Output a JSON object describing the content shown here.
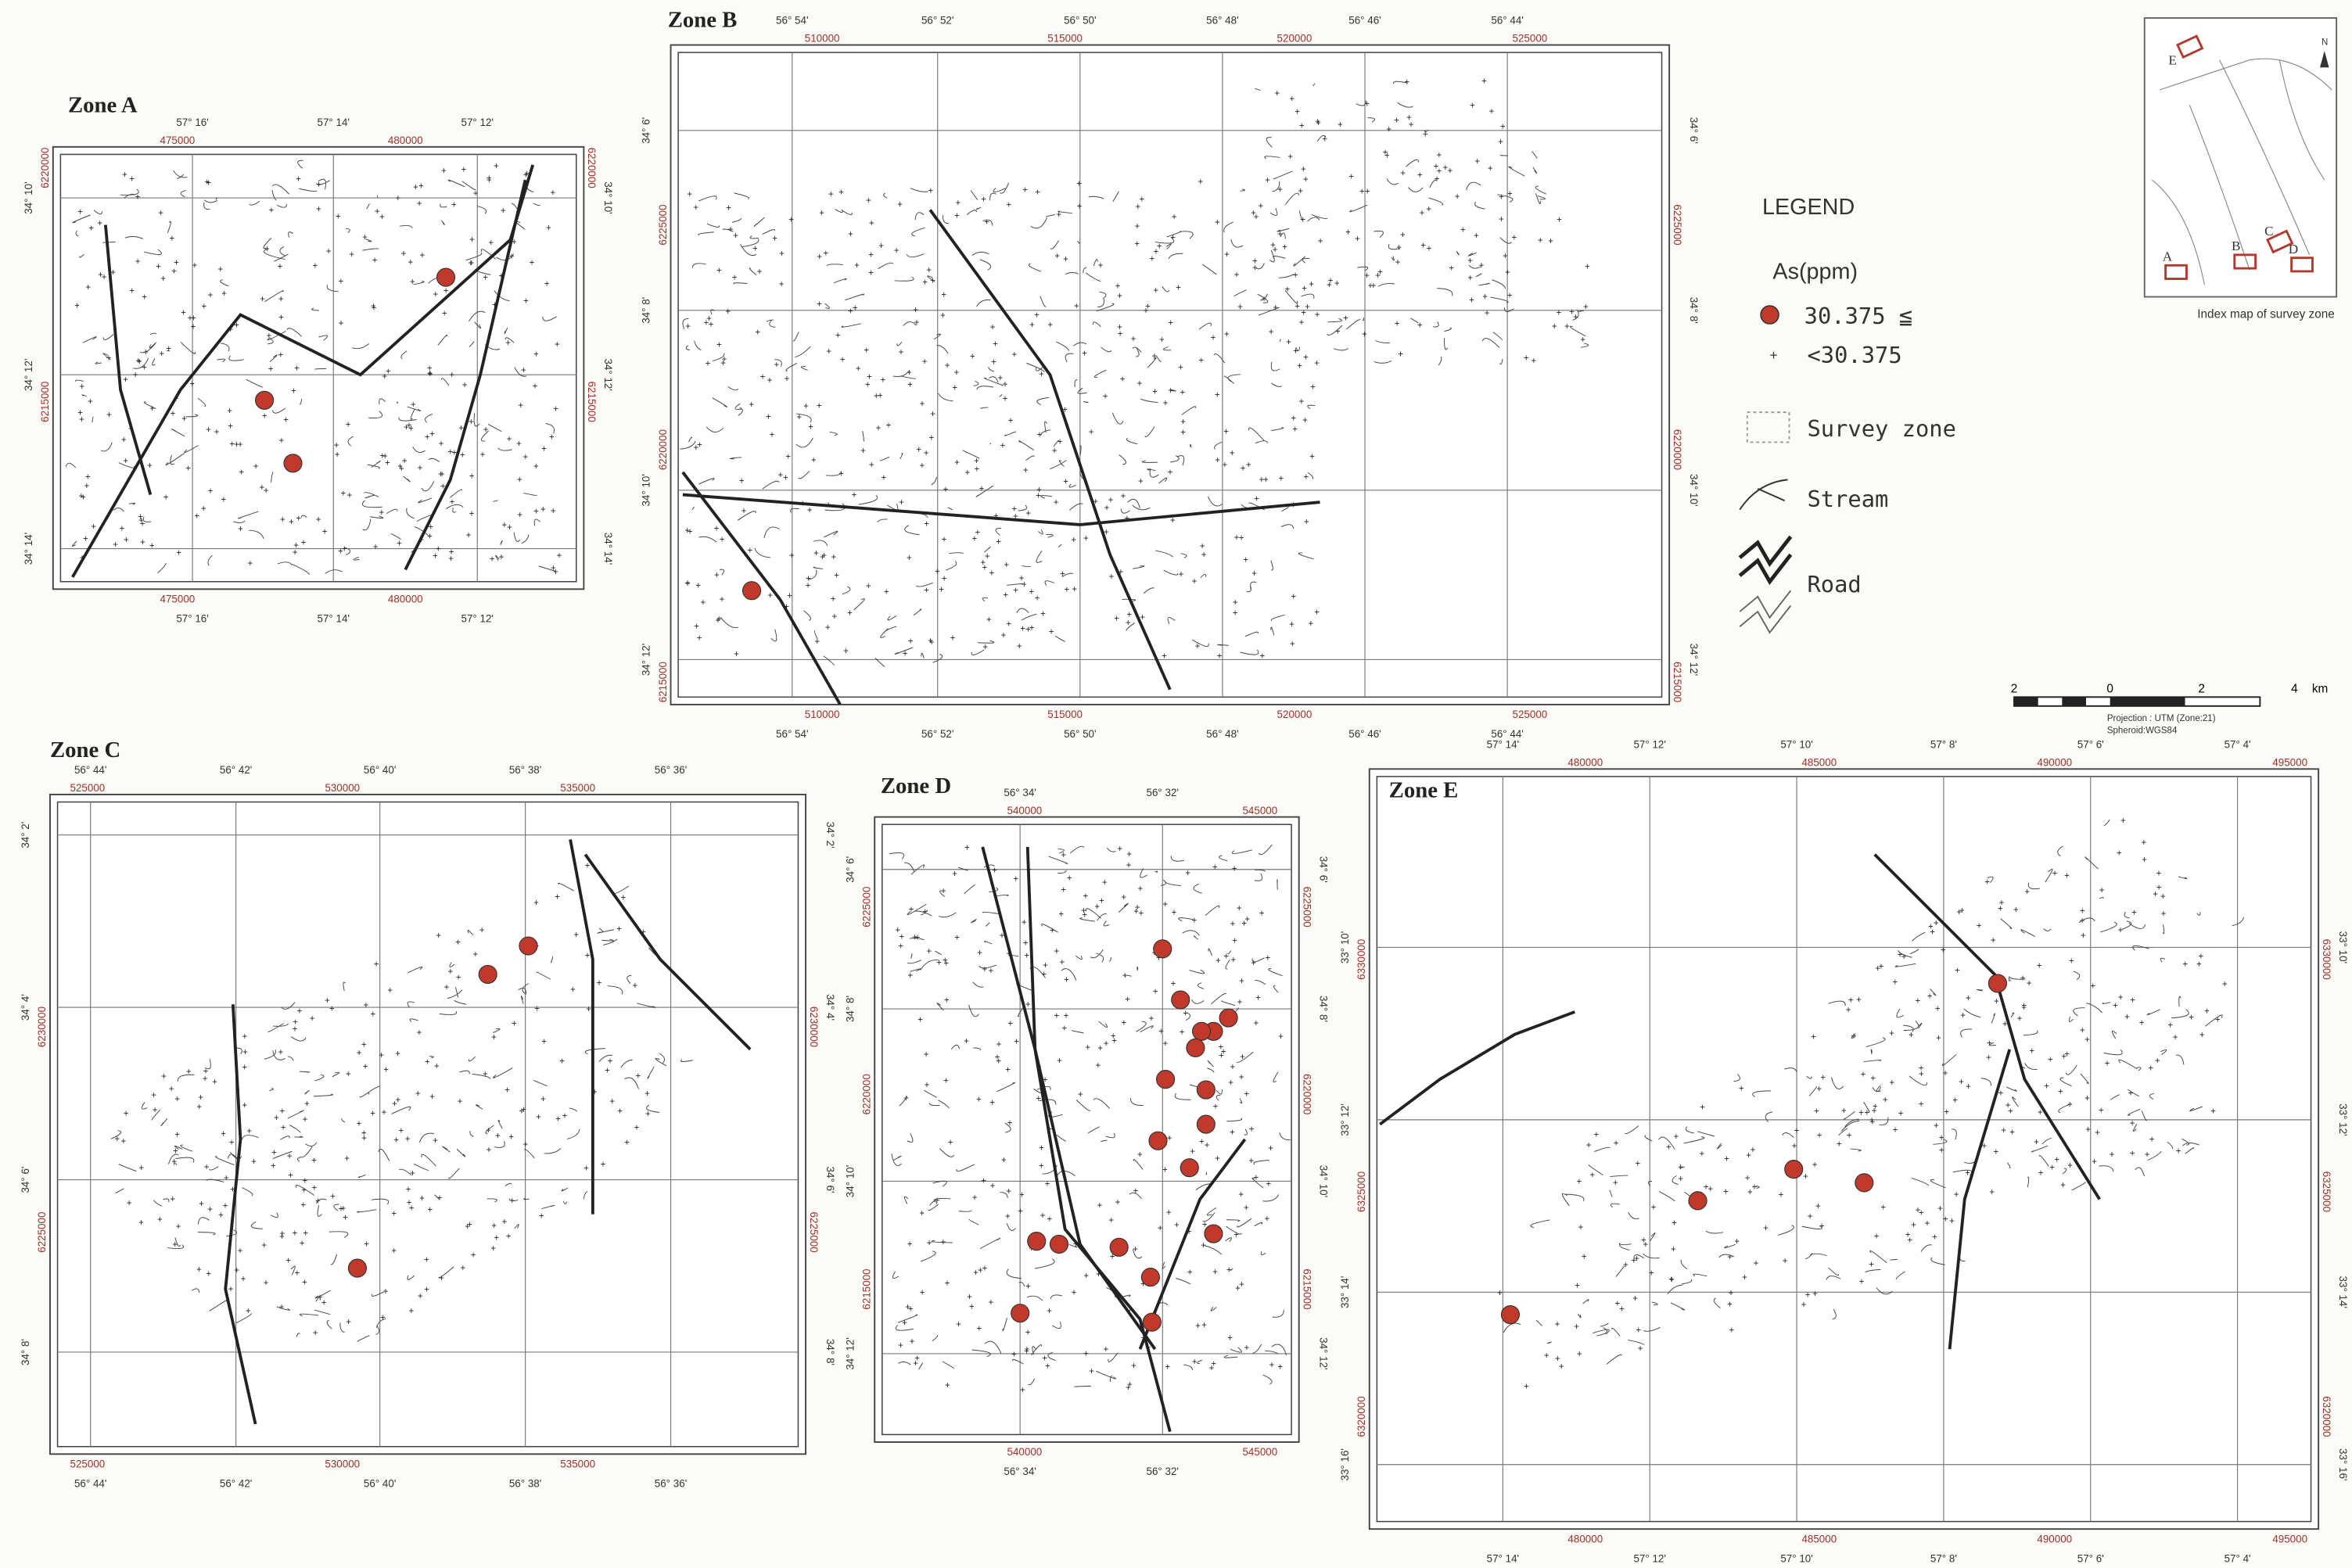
{
  "zones": [
    {
      "title": "Zone A",
      "longitudes": [
        "57° 16'",
        "57° 14'",
        "57° 12'"
      ],
      "eastings": [
        "475000",
        "480000"
      ],
      "latitudes": [
        "34° 10'",
        "34° 12'",
        "34° 14'"
      ],
      "northings": [
        "6220000",
        "6215000"
      ]
    },
    {
      "title": "Zone B",
      "longitudes": [
        "56° 54'",
        "56° 52'",
        "56° 50'",
        "56° 48'",
        "56° 46'",
        "56° 44'"
      ],
      "eastings": [
        "510000",
        "515000",
        "520000",
        "525000"
      ],
      "latitudes": [
        "34° 6'",
        "34° 8'",
        "34° 10'",
        "34° 12'"
      ],
      "northings": [
        "6225000",
        "6220000",
        "6215000"
      ]
    },
    {
      "title": "Zone C",
      "longitudes": [
        "56° 44'",
        "56° 42'",
        "56° 40'",
        "56° 38'",
        "56° 36'"
      ],
      "eastings": [
        "525000",
        "530000",
        "535000"
      ],
      "latitudes": [
        "34° 2'",
        "34° 4'",
        "34° 6'",
        "34° 8'"
      ],
      "northings": [
        "6230000",
        "6225000"
      ]
    },
    {
      "title": "Zone D",
      "longitudes": [
        "56° 34'",
        "56° 32'"
      ],
      "eastings": [
        "540000",
        "545000"
      ],
      "latitudes": [
        "34° 6'",
        "34° 8'",
        "34° 10'",
        "34° 12'"
      ],
      "northings": [
        "6225000",
        "6220000",
        "6215000"
      ]
    },
    {
      "title": "Zone E",
      "longitudes": [
        "57° 14'",
        "57° 12'",
        "57° 10'",
        "57° 8'",
        "57° 6'",
        "57° 4'"
      ],
      "eastings": [
        "480000",
        "485000",
        "490000",
        "495000"
      ],
      "latitudes": [
        "33° 10'",
        "33° 12'",
        "33° 14'",
        "33° 16'"
      ],
      "northings": [
        "6330000",
        "6325000",
        "6320000"
      ]
    }
  ],
  "legend": {
    "title": "LEGEND",
    "subtitle": "As(ppm)",
    "items": [
      "30.375 ≦",
      "<30.375",
      "Survey zone",
      "Stream",
      "Road"
    ]
  },
  "index_map": {
    "caption": "Index map of survey zone",
    "labels": [
      "A",
      "B",
      "C",
      "D",
      "E"
    ],
    "north": "N"
  },
  "scale": {
    "labels": [
      "2",
      "0",
      "2",
      "4",
      "km"
    ],
    "projection": "Projection : UTM (Zone:21)",
    "spheroid": "Spheroid:WGS84"
  }
}
